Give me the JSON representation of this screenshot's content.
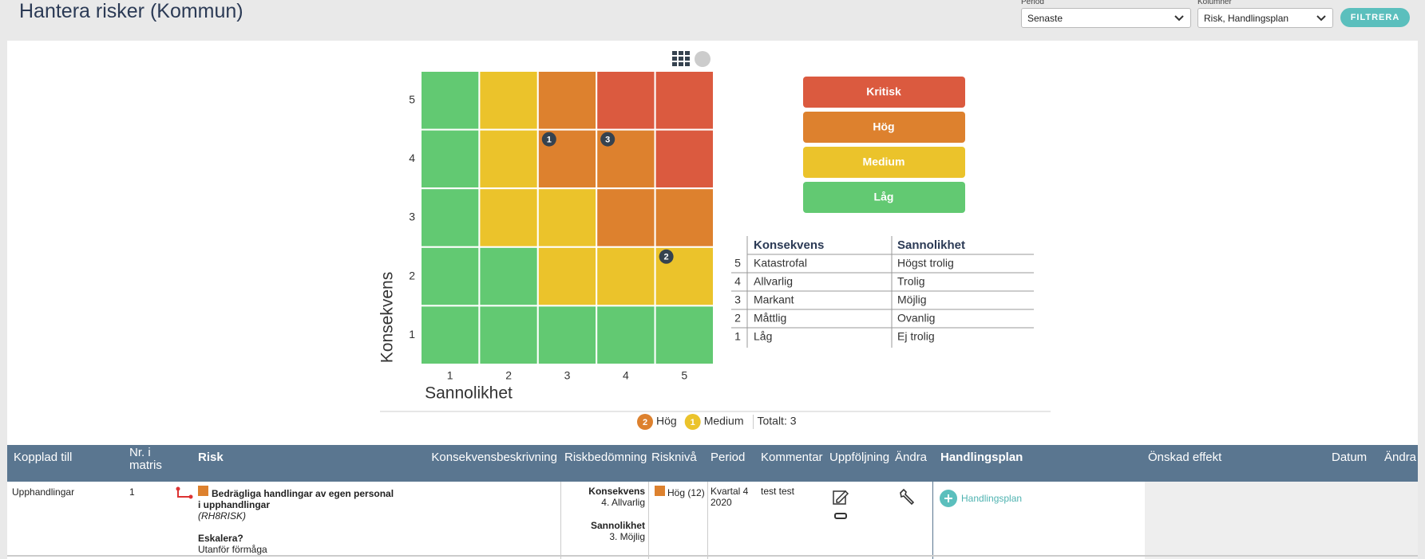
{
  "header": {
    "title": "Hantera risker (Kommun)",
    "filters": [
      {
        "label": "Period",
        "value": "Senaste"
      },
      {
        "label": "Kolumner",
        "value": "Risk, Handlingsplan"
      }
    ],
    "button": "FILTRERA"
  },
  "matrix": {
    "y_label": "Konsekvens",
    "x_label": "Sannolikhet",
    "x_ticks": [
      1,
      2,
      3,
      4,
      5
    ],
    "y_ticks": [
      5,
      4,
      3,
      2,
      1
    ],
    "cells": [
      [
        "Låg",
        "Medium",
        "Hög",
        "Kritisk",
        "Kritisk"
      ],
      [
        "Låg",
        "Medium",
        "Hög",
        "Hög",
        "Kritisk"
      ],
      [
        "Låg",
        "Medium",
        "Medium",
        "Hög",
        "Hög"
      ],
      [
        "Låg",
        "Låg",
        "Medium",
        "Medium",
        "Medium"
      ],
      [
        "Låg",
        "Låg",
        "Låg",
        "Låg",
        "Låg"
      ]
    ],
    "marker_color": "#35424f",
    "markers": [
      {
        "label": 1,
        "x": 3,
        "y": 4
      },
      {
        "label": 3,
        "x": 4,
        "y": 4
      },
      {
        "label": 2,
        "x": 5,
        "y": 2
      }
    ]
  },
  "levels": [
    {
      "label": "Kritisk",
      "color": "#db5a3f"
    },
    {
      "label": "Hög",
      "color": "#dd812e"
    },
    {
      "label": "Medium",
      "color": "#ebc32b"
    },
    {
      "label": "Låg",
      "color": "#62c972"
    }
  ],
  "scale": {
    "headers": [
      "Konsekvens",
      "Sannolikhet"
    ],
    "rows": [
      {
        "level": 5,
        "konsekvens": "Katastrofal",
        "sannolikhet": "Högst trolig"
      },
      {
        "level": 4,
        "konsekvens": "Allvarlig",
        "sannolikhet": "Trolig"
      },
      {
        "level": 3,
        "konsekvens": "Markant",
        "sannolikhet": "Möjlig"
      },
      {
        "level": 2,
        "konsekvens": "Måttlig",
        "sannolikhet": "Ovanlig"
      },
      {
        "level": 1,
        "konsekvens": "Låg",
        "sannolikhet": "Ej trolig"
      }
    ]
  },
  "summary": {
    "items": [
      {
        "count": 2,
        "level": "Hög"
      },
      {
        "count": 1,
        "level": "Medium"
      }
    ],
    "total": "Totalt: 3"
  },
  "table": {
    "columns": [
      "Kopplad till",
      "Nr. i matris",
      "Risk",
      "Konsekvensbeskrivning",
      "Riskbedömning",
      "Risknivå",
      "Period",
      "Kommentar",
      "Uppföljning",
      "Ändra",
      "Handlingsplan",
      "Önskad effekt",
      "Datum",
      "Ändra"
    ],
    "rows": [
      {
        "kopplad": "Upphandlingar",
        "nr": 1,
        "risk_title": "Bedrägliga handlingar av egen personal i upphandlingar",
        "risk_code": "(RH8RISK)",
        "escalate_label": "Eskalera?",
        "escalate_value": "Utanför förmåga",
        "assessment": [
          {
            "label": "Konsekvens",
            "value": "4. Allvarlig"
          },
          {
            "label": "Sannolikhet",
            "value": "3. Möjlig"
          }
        ],
        "level": "Hög (12)",
        "level_color": "#dd812e",
        "period": "Kvartal 4 2020",
        "comment": "test test",
        "action": "Handlingsplan"
      }
    ]
  }
}
